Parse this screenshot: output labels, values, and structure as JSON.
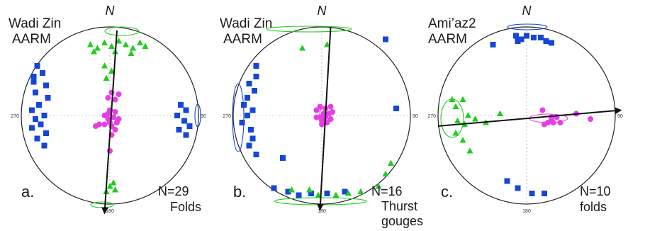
{
  "colors": {
    "circle": "#222222",
    "square": "#1546d6",
    "triangle": "#22cc22",
    "dot": "#e63ee6",
    "arrow": "#111111",
    "axis": "#9a9a9a"
  },
  "panels": [
    {
      "site": "Wadi Zin",
      "method": "AARM",
      "north": "N",
      "tick_90": "90",
      "tick_180": "180",
      "tick_270": "270",
      "letter": "a.",
      "count": "N=29",
      "type_line1": "Folds",
      "type_line2": "",
      "kmax": [
        [
          -41,
          -28
        ],
        [
          -38,
          -24
        ],
        [
          -43,
          -19
        ],
        [
          -36,
          -17
        ],
        [
          -42,
          -13
        ],
        [
          -35,
          -10
        ],
        [
          -40,
          -6
        ],
        [
          -44,
          -3
        ],
        [
          -37,
          0
        ],
        [
          -42,
          2
        ],
        [
          -39,
          5
        ],
        [
          -44,
          7
        ],
        [
          -36,
          10
        ],
        [
          -41,
          13
        ],
        [
          -37,
          17
        ],
        [
          -43,
          -22
        ],
        [
          40,
          -6
        ],
        [
          43,
          -3
        ],
        [
          38,
          0
        ],
        [
          42,
          3
        ],
        [
          45,
          6
        ],
        [
          39,
          8
        ],
        [
          43,
          11
        ]
      ],
      "kint": [
        [
          -11,
          -40
        ],
        [
          -7,
          -38
        ],
        [
          -3,
          -41
        ],
        [
          1,
          -39
        ],
        [
          5,
          -42
        ],
        [
          9,
          -40
        ],
        [
          13,
          -38
        ],
        [
          17,
          -41
        ],
        [
          20,
          -39
        ],
        [
          -9,
          -36
        ],
        [
          3,
          -36
        ],
        [
          12,
          -35
        ],
        [
          -3,
          -28
        ],
        [
          1,
          -25
        ],
        [
          -2,
          -21
        ],
        [
          0,
          40
        ],
        [
          3,
          42
        ],
        [
          -2,
          43
        ],
        [
          2,
          38
        ]
      ],
      "kmin": [
        [
          1,
          -13
        ],
        [
          5,
          -12
        ],
        [
          -1,
          -10
        ],
        [
          3,
          -9
        ],
        [
          0,
          -3
        ],
        [
          3,
          -2
        ],
        [
          -3,
          0
        ],
        [
          2,
          1
        ],
        [
          5,
          2
        ],
        [
          -1,
          2
        ],
        [
          0,
          4
        ],
        [
          4,
          4
        ],
        [
          -3,
          5
        ],
        [
          1,
          6
        ],
        [
          -6,
          5
        ],
        [
          -8,
          6
        ],
        [
          3,
          8
        ],
        [
          1,
          11
        ],
        [
          0,
          20
        ],
        [
          -1,
          -1
        ]
      ],
      "axis_arrow": {
        "from": [
          4,
          -48
        ],
        "to": [
          -3,
          55
        ]
      }
    },
    {
      "site": "Wadi Zin",
      "method": "AARM",
      "north": "N",
      "tick_90": "90",
      "tick_180": "180",
      "tick_270": "270",
      "letter": "b.",
      "count": "N=16",
      "type_line1": "Thurst",
      "type_line2": "gouges",
      "kmax": [
        [
          -37,
          -22
        ],
        [
          -41,
          -18
        ],
        [
          -38,
          -14
        ],
        [
          -42,
          -10
        ],
        [
          -44,
          -6
        ],
        [
          -39,
          -3
        ],
        [
          -42,
          0
        ],
        [
          -45,
          4
        ],
        [
          -40,
          8
        ],
        [
          -39,
          13
        ],
        [
          -41,
          17
        ],
        [
          -37,
          22
        ],
        [
          -37,
          -28
        ],
        [
          -22,
          24
        ],
        [
          42,
          -4
        ],
        [
          -27,
          41
        ],
        [
          -19,
          43
        ],
        [
          -13,
          45
        ],
        [
          -6,
          44
        ],
        [
          3,
          44
        ],
        [
          13,
          43
        ],
        [
          36,
          -43
        ]
      ],
      "kint": [
        [
          3,
          -40
        ],
        [
          -11,
          -38
        ],
        [
          -17,
          42
        ],
        [
          -7,
          42
        ],
        [
          -2,
          45
        ],
        [
          8,
          45
        ],
        [
          15,
          44
        ],
        [
          22,
          43
        ],
        [
          32,
          40
        ],
        [
          36,
          33
        ],
        [
          39,
          27
        ]
      ],
      "kmin": [
        [
          -1,
          -5
        ],
        [
          2,
          -4
        ],
        [
          5,
          -5
        ],
        [
          -3,
          -3
        ],
        [
          1,
          -1
        ],
        [
          4,
          -1
        ],
        [
          -1,
          1
        ],
        [
          2,
          1
        ],
        [
          5,
          2
        ],
        [
          0,
          3
        ],
        [
          3,
          4
        ],
        [
          0,
          5
        ],
        [
          -3,
          1
        ],
        [
          6,
          -2
        ]
      ],
      "axis_arrow": {
        "from": [
          5,
          -50
        ],
        "to": [
          -1,
          53
        ]
      }
    },
    {
      "site": "Ami’az2",
      "method": "AARM",
      "north": "N",
      "tick_90": "90",
      "tick_180": "180",
      "tick_270": "270",
      "letter": "c.",
      "count": "N=10",
      "type_line1": "folds",
      "type_line2": "",
      "kmax": [
        [
          -6,
          -45
        ],
        [
          -3,
          -43
        ],
        [
          0,
          -45
        ],
        [
          4,
          -44
        ],
        [
          8,
          -44
        ],
        [
          11,
          -42
        ],
        [
          14,
          -41
        ],
        [
          -5,
          -42
        ],
        [
          -19,
          -40
        ],
        [
          -11,
          37
        ],
        [
          3,
          44
        ],
        [
          10,
          44
        ],
        [
          -5,
          41
        ]
      ],
      "kint": [
        [
          -42,
          -9
        ],
        [
          -36,
          -9
        ],
        [
          -40,
          -5
        ],
        [
          -33,
          0
        ],
        [
          -39,
          3
        ],
        [
          -35,
          5
        ],
        [
          -40,
          10
        ],
        [
          -36,
          14
        ],
        [
          -32,
          20
        ],
        [
          -29,
          2
        ],
        [
          -23,
          4
        ],
        [
          -15,
          -1
        ]
      ],
      "kmin": [
        [
          9,
          -3
        ],
        [
          14,
          1
        ],
        [
          17,
          1
        ],
        [
          19,
          4
        ],
        [
          15,
          4
        ],
        [
          12,
          4
        ],
        [
          10,
          5
        ],
        [
          28,
          -1
        ],
        [
          36,
          2
        ],
        [
          14,
          2
        ]
      ],
      "axis_arrow": {
        "from": [
          -50,
          6
        ],
        "to": [
          53,
          -3
        ]
      }
    }
  ]
}
